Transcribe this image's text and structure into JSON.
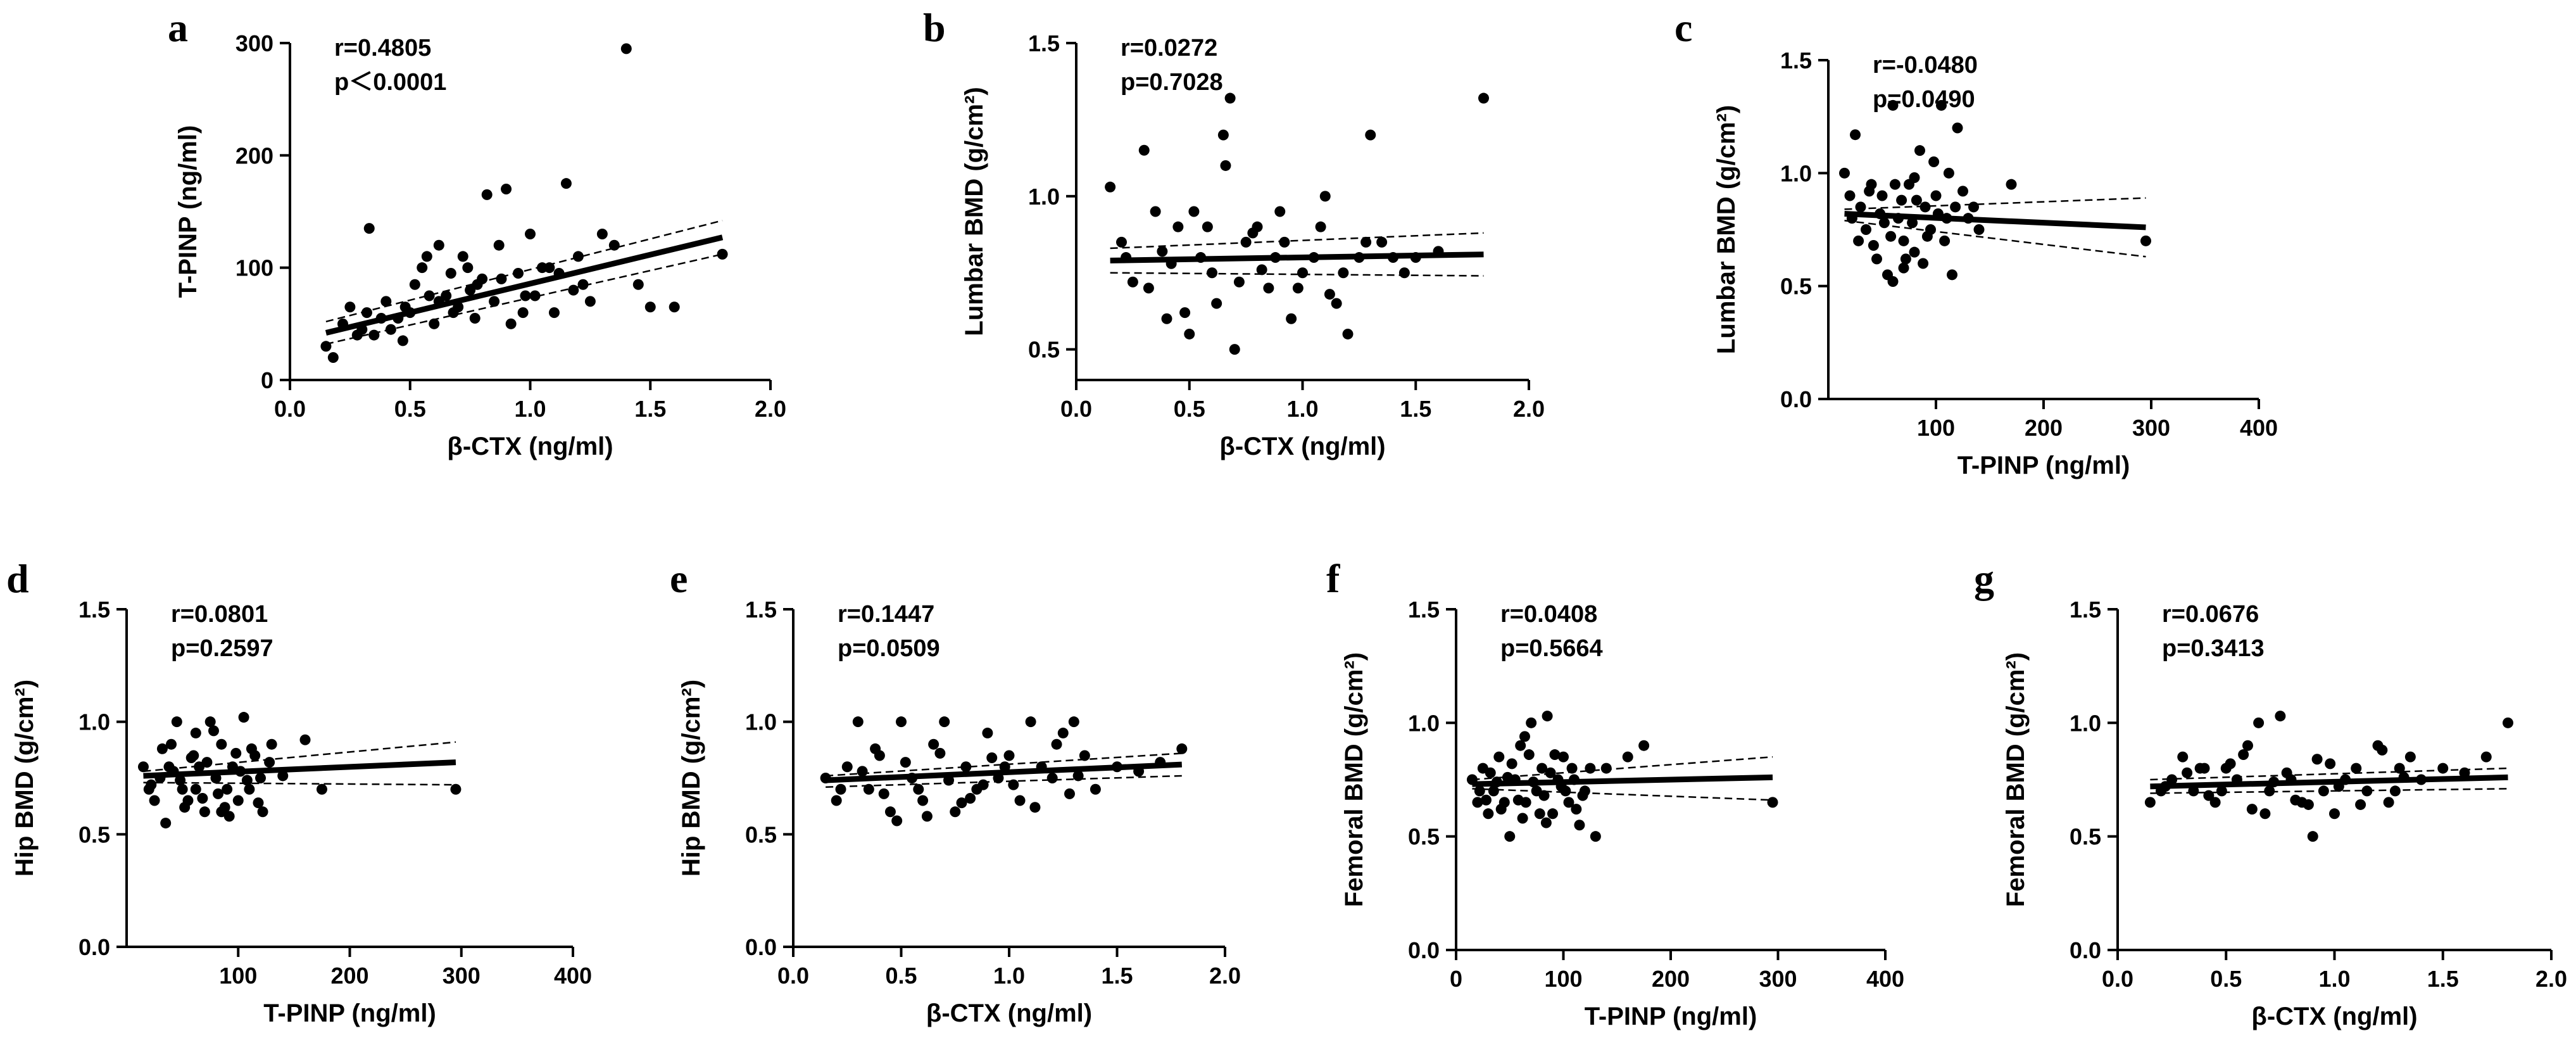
{
  "chart_data": [
    {
      "type": "scatter",
      "panel_label": "a",
      "xlabel": "β-CTX (ng/ml)",
      "ylabel": "T-PINP (ng/ml)",
      "xlim": [
        0,
        2.0
      ],
      "ylim": [
        0,
        300
      ],
      "xticks": [
        0,
        0.5,
        1.0,
        1.5,
        2.0
      ],
      "xtick_labels": [
        "0.0",
        "0.5",
        "1.0",
        "1.5",
        "2.0"
      ],
      "yticks": [
        0,
        100,
        200,
        300
      ],
      "ytick_labels": [
        "0",
        "100",
        "200",
        "300"
      ],
      "stats": {
        "r": "r=0.4805",
        "p": "p＜0.0001"
      },
      "fit": {
        "x": [
          0.15,
          1.8
        ],
        "y": [
          42,
          127
        ]
      },
      "ci_upper": {
        "x": [
          0.15,
          1.8
        ],
        "y": [
          52,
          142
        ]
      },
      "ci_lower": {
        "x": [
          0.15,
          1.8
        ],
        "y": [
          32,
          112
        ]
      },
      "points": {
        "x": [
          0.15,
          0.18,
          0.22,
          0.25,
          0.3,
          0.33,
          0.35,
          0.4,
          0.45,
          0.5,
          0.52,
          0.55,
          0.6,
          0.62,
          0.65,
          0.7,
          0.72,
          0.75,
          0.8,
          0.82,
          0.85,
          0.9,
          0.95,
          1.0,
          1.05,
          1.1,
          1.15,
          1.2,
          1.25,
          1.3,
          1.35,
          1.4,
          1.45,
          1.5,
          1.6,
          1.8,
          0.28,
          0.38,
          0.48,
          0.58,
          0.68,
          0.78,
          0.88,
          0.98,
          1.08,
          1.18,
          0.42,
          0.57,
          0.67,
          0.77,
          0.87,
          0.97,
          1.12,
          1.22,
          0.32,
          0.47,
          0.62,
          0.74,
          0.92,
          1.02
        ],
        "y": [
          30,
          20,
          50,
          65,
          45,
          135,
          40,
          70,
          55,
          60,
          85,
          100,
          50,
          120,
          75,
          65,
          110,
          80,
          90,
          165,
          70,
          170,
          95,
          130,
          100,
          60,
          175,
          110,
          70,
          130,
          120,
          295,
          85,
          65,
          65,
          112,
          40,
          55,
          65,
          75,
          60,
          85,
          90,
          75,
          100,
          80,
          45,
          110,
          95,
          55,
          120,
          60,
          95,
          85,
          60,
          35,
          70,
          100,
          50,
          75
        ]
      }
    },
    {
      "type": "scatter",
      "panel_label": "b",
      "xlabel": "β-CTX (ng/ml)",
      "ylabel": "Lumbar BMD (g/cm²)",
      "xlim": [
        0,
        2.0
      ],
      "ylim": [
        0.4,
        1.5
      ],
      "xticks": [
        0,
        0.5,
        1.0,
        1.5,
        2.0
      ],
      "xtick_labels": [
        "0.0",
        "0.5",
        "1.0",
        "1.5",
        "2.0"
      ],
      "yticks": [
        0.5,
        1.0,
        1.5
      ],
      "ytick_labels": [
        "0.5",
        "1.0",
        "1.5"
      ],
      "stats": {
        "r": "r=0.0272",
        "p": "p=0.7028"
      },
      "fit": {
        "x": [
          0.15,
          1.8
        ],
        "y": [
          0.79,
          0.81
        ]
      },
      "ci_upper": {
        "x": [
          0.15,
          1.8
        ],
        "y": [
          0.83,
          0.88
        ]
      },
      "ci_lower": {
        "x": [
          0.15,
          1.8
        ],
        "y": [
          0.75,
          0.74
        ]
      },
      "points": {
        "x": [
          0.15,
          0.2,
          0.25,
          0.3,
          0.35,
          0.4,
          0.45,
          0.5,
          0.55,
          0.6,
          0.65,
          0.7,
          0.75,
          0.8,
          0.85,
          0.9,
          0.95,
          1.0,
          1.05,
          1.1,
          1.15,
          1.2,
          1.25,
          1.3,
          1.35,
          1.4,
          1.45,
          1.5,
          1.6,
          1.8,
          0.22,
          0.32,
          0.42,
          0.52,
          0.62,
          0.68,
          0.72,
          0.78,
          0.88,
          0.98,
          1.08,
          1.18,
          1.28,
          0.38,
          0.48,
          0.58,
          0.66,
          0.82,
          0.92,
          1.12
        ],
        "y": [
          1.03,
          0.85,
          0.72,
          1.15,
          0.95,
          0.6,
          0.9,
          0.55,
          0.8,
          0.75,
          1.2,
          0.5,
          0.85,
          0.9,
          0.7,
          0.95,
          0.6,
          0.75,
          0.8,
          1.0,
          0.65,
          0.55,
          0.8,
          1.2,
          0.85,
          0.8,
          0.75,
          0.8,
          0.82,
          1.32,
          0.8,
          0.7,
          0.78,
          0.95,
          0.65,
          1.32,
          0.72,
          0.88,
          0.8,
          0.7,
          0.9,
          0.75,
          0.85,
          0.82,
          0.62,
          0.9,
          1.1,
          0.76,
          0.85,
          0.68
        ]
      }
    },
    {
      "type": "scatter",
      "panel_label": "c",
      "xlabel": "T-PINP (ng/ml)",
      "ylabel": "Lumbar BMD (g/cm²)",
      "xlim": [
        0,
        400
      ],
      "ylim": [
        0,
        1.5
      ],
      "xticks": [
        100,
        200,
        300,
        400
      ],
      "xtick_labels": [
        "100",
        "200",
        "300",
        "400"
      ],
      "yticks": [
        0,
        0.5,
        1.0,
        1.5
      ],
      "ytick_labels": [
        "0.0",
        "0.5",
        "1.0",
        "1.5"
      ],
      "stats": {
        "r": "r=-0.0480",
        "p": "p=0.0490"
      },
      "fit": {
        "x": [
          15,
          295
        ],
        "y": [
          0.82,
          0.76
        ]
      },
      "ci_upper": {
        "x": [
          15,
          295
        ],
        "y": [
          0.84,
          0.89
        ]
      },
      "ci_lower": {
        "x": [
          15,
          295
        ],
        "y": [
          0.79,
          0.63
        ]
      },
      "points": {
        "x": [
          15,
          20,
          25,
          30,
          35,
          40,
          45,
          50,
          55,
          60,
          65,
          70,
          75,
          80,
          85,
          90,
          95,
          100,
          105,
          110,
          115,
          120,
          130,
          140,
          170,
          295,
          22,
          28,
          38,
          48,
          58,
          68,
          78,
          88,
          98,
          108,
          118,
          125,
          42,
          52,
          62,
          72,
          82,
          92,
          102,
          112,
          135,
          60,
          70,
          80
        ],
        "y": [
          1.0,
          0.9,
          1.17,
          0.85,
          0.75,
          0.95,
          0.62,
          0.9,
          0.55,
          1.3,
          0.8,
          0.7,
          0.95,
          0.65,
          1.1,
          0.85,
          0.75,
          0.9,
          1.3,
          0.8,
          0.55,
          1.2,
          0.8,
          0.75,
          0.95,
          0.7,
          0.8,
          0.7,
          0.92,
          0.82,
          0.72,
          0.88,
          0.78,
          0.6,
          1.05,
          0.7,
          0.85,
          0.92,
          0.68,
          0.78,
          0.95,
          0.62,
          0.88,
          0.72,
          0.82,
          1.0,
          0.85,
          0.52,
          0.58,
          0.98
        ]
      }
    },
    {
      "type": "scatter",
      "panel_label": "d",
      "xlabel": "T-PINP (ng/ml)",
      "ylabel": "Hip BMD (g/cm²)",
      "xlim": [
        0,
        400
      ],
      "ylim": [
        0,
        1.5
      ],
      "xticks": [
        100,
        200,
        300,
        400
      ],
      "xtick_labels": [
        "100",
        "200",
        "300",
        "400"
      ],
      "yticks": [
        0,
        0.5,
        1.0,
        1.5
      ],
      "ytick_labels": [
        "0.0",
        "0.5",
        "1.0",
        "1.5"
      ],
      "stats": {
        "r": "r=0.0801",
        "p": "p=0.2597"
      },
      "fit": {
        "x": [
          15,
          295
        ],
        "y": [
          0.76,
          0.82
        ]
      },
      "ci_upper": {
        "x": [
          15,
          295
        ],
        "y": [
          0.78,
          0.91
        ]
      },
      "ci_lower": {
        "x": [
          15,
          295
        ],
        "y": [
          0.73,
          0.72
        ]
      },
      "points": {
        "x": [
          15,
          20,
          25,
          30,
          35,
          40,
          45,
          50,
          55,
          60,
          65,
          70,
          75,
          80,
          85,
          90,
          95,
          100,
          105,
          110,
          115,
          120,
          130,
          160,
          175,
          295,
          22,
          32,
          42,
          52,
          62,
          72,
          82,
          92,
          102,
          112,
          122,
          48,
          58,
          68,
          78,
          88,
          98,
          108,
          118,
          38,
          128,
          140,
          62,
          85
        ],
        "y": [
          0.8,
          0.7,
          0.65,
          0.75,
          0.55,
          0.9,
          1.0,
          0.7,
          0.65,
          0.85,
          0.8,
          0.6,
          1.0,
          0.75,
          0.9,
          0.7,
          0.8,
          0.65,
          1.02,
          0.7,
          0.85,
          0.75,
          0.9,
          0.92,
          0.7,
          0.7,
          0.72,
          0.88,
          0.78,
          0.62,
          0.95,
          0.82,
          0.68,
          0.58,
          0.78,
          0.88,
          0.6,
          0.74,
          0.84,
          0.66,
          0.96,
          0.62,
          0.86,
          0.74,
          0.64,
          0.8,
          0.82,
          0.76,
          0.7,
          0.6
        ]
      }
    },
    {
      "type": "scatter",
      "panel_label": "e",
      "xlabel": "β-CTX (ng/ml)",
      "ylabel": "Hip BMD (g/cm²)",
      "xlim": [
        0,
        2.0
      ],
      "ylim": [
        0,
        1.5
      ],
      "xticks": [
        0,
        0.5,
        1.0,
        1.5,
        2.0
      ],
      "xtick_labels": [
        "0.0",
        "0.5",
        "1.0",
        "1.5",
        "2.0"
      ],
      "yticks": [
        0,
        0.5,
        1.0,
        1.5
      ],
      "ytick_labels": [
        "0.0",
        "0.5",
        "1.0",
        "1.5"
      ],
      "stats": {
        "r": "r=0.1447",
        "p": "p=0.0509"
      },
      "fit": {
        "x": [
          0.15,
          1.8
        ],
        "y": [
          0.74,
          0.81
        ]
      },
      "ci_upper": {
        "x": [
          0.15,
          1.8
        ],
        "y": [
          0.76,
          0.86
        ]
      },
      "ci_lower": {
        "x": [
          0.15,
          1.8
        ],
        "y": [
          0.71,
          0.76
        ]
      },
      "points": {
        "x": [
          0.15,
          0.2,
          0.25,
          0.3,
          0.35,
          0.4,
          0.45,
          0.5,
          0.55,
          0.6,
          0.65,
          0.7,
          0.75,
          0.8,
          0.85,
          0.9,
          0.95,
          1.0,
          1.05,
          1.1,
          1.15,
          1.2,
          1.25,
          1.3,
          1.35,
          1.4,
          1.5,
          1.6,
          1.7,
          1.8,
          0.22,
          0.32,
          0.42,
          0.52,
          0.62,
          0.72,
          0.82,
          0.92,
          1.02,
          1.12,
          1.22,
          1.32,
          0.38,
          0.48,
          0.58,
          0.68,
          0.78,
          0.88,
          0.98,
          1.28
        ],
        "y": [
          0.75,
          0.65,
          0.8,
          1.0,
          0.7,
          0.85,
          0.6,
          1.0,
          0.75,
          0.65,
          0.9,
          1.0,
          0.6,
          0.8,
          0.7,
          0.95,
          0.75,
          0.85,
          0.65,
          1.0,
          0.8,
          0.75,
          0.95,
          1.0,
          0.85,
          0.7,
          0.8,
          0.78,
          0.82,
          0.88,
          0.7,
          0.78,
          0.68,
          0.82,
          0.58,
          0.74,
          0.66,
          0.84,
          0.72,
          0.62,
          0.9,
          0.76,
          0.88,
          0.56,
          0.7,
          0.86,
          0.64,
          0.72,
          0.8,
          0.68
        ]
      }
    },
    {
      "type": "scatter",
      "panel_label": "f",
      "xlabel": "T-PINP (ng/ml)",
      "ylabel": "Femoral BMD (g/cm²)",
      "xlim": [
        0,
        400
      ],
      "ylim": [
        0,
        1.5
      ],
      "xticks": [
        0,
        100,
        200,
        300,
        400
      ],
      "xtick_labels": [
        "0",
        "100",
        "200",
        "300",
        "400"
      ],
      "yticks": [
        0,
        0.5,
        1.0,
        1.5
      ],
      "ytick_labels": [
        "0.0",
        "0.5",
        "1.0",
        "1.5"
      ],
      "stats": {
        "r": "r=0.0408",
        "p": "p=0.5664"
      },
      "fit": {
        "x": [
          15,
          295
        ],
        "y": [
          0.73,
          0.76
        ]
      },
      "ci_upper": {
        "x": [
          15,
          295
        ],
        "y": [
          0.75,
          0.85
        ]
      },
      "ci_lower": {
        "x": [
          15,
          295
        ],
        "y": [
          0.71,
          0.66
        ]
      },
      "points": {
        "x": [
          15,
          20,
          25,
          30,
          35,
          40,
          45,
          50,
          55,
          60,
          65,
          70,
          75,
          80,
          85,
          90,
          95,
          100,
          105,
          110,
          115,
          120,
          130,
          160,
          175,
          295,
          22,
          32,
          42,
          52,
          62,
          72,
          82,
          92,
          102,
          112,
          125,
          48,
          58,
          68,
          78,
          88,
          98,
          108,
          118,
          38,
          28,
          140,
          64,
          84
        ],
        "y": [
          0.75,
          0.65,
          0.8,
          0.6,
          0.7,
          0.85,
          0.65,
          0.5,
          0.75,
          0.9,
          0.65,
          1.0,
          0.7,
          0.8,
          1.03,
          0.6,
          0.75,
          0.85,
          0.65,
          0.75,
          0.55,
          0.7,
          0.5,
          0.85,
          0.9,
          0.65,
          0.7,
          0.78,
          0.62,
          0.82,
          0.58,
          0.74,
          0.68,
          0.86,
          0.7,
          0.62,
          0.8,
          0.76,
          0.66,
          0.86,
          0.6,
          0.78,
          0.72,
          0.8,
          0.68,
          0.74,
          0.66,
          0.8,
          0.94,
          0.56
        ]
      }
    },
    {
      "type": "scatter",
      "panel_label": "g",
      "xlabel": "β-CTX (ng/ml)",
      "ylabel": "Femoral BMD (g/cm²)",
      "xlim": [
        0,
        2.0
      ],
      "ylim": [
        0,
        1.5
      ],
      "xticks": [
        0,
        0.5,
        1.0,
        1.5,
        2.0
      ],
      "xtick_labels": [
        "0.0",
        "0.5",
        "1.0",
        "1.5",
        "2.0"
      ],
      "yticks": [
        0,
        0.5,
        1.0,
        1.5
      ],
      "ytick_labels": [
        "0.0",
        "0.5",
        "1.0",
        "1.5"
      ],
      "stats": {
        "r": "r=0.0676",
        "p": "p=0.3413"
      },
      "fit": {
        "x": [
          0.15,
          1.8
        ],
        "y": [
          0.72,
          0.76
        ]
      },
      "ci_upper": {
        "x": [
          0.15,
          1.8
        ],
        "y": [
          0.75,
          0.8
        ]
      },
      "ci_lower": {
        "x": [
          0.15,
          1.8
        ],
        "y": [
          0.69,
          0.71
        ]
      },
      "points": {
        "x": [
          0.15,
          0.2,
          0.25,
          0.3,
          0.35,
          0.4,
          0.45,
          0.5,
          0.55,
          0.6,
          0.65,
          0.7,
          0.75,
          0.8,
          0.85,
          0.9,
          0.95,
          1.0,
          1.05,
          1.1,
          1.15,
          1.2,
          1.25,
          1.3,
          1.35,
          1.4,
          1.5,
          1.6,
          1.7,
          1.8,
          0.22,
          0.32,
          0.42,
          0.52,
          0.62,
          0.72,
          0.82,
          0.92,
          1.02,
          1.12,
          1.22,
          1.32,
          0.38,
          0.48,
          0.58,
          0.68,
          0.78,
          0.88,
          0.98,
          1.28
        ],
        "y": [
          0.65,
          0.7,
          0.75,
          0.85,
          0.7,
          0.8,
          0.65,
          0.8,
          0.75,
          0.9,
          1.0,
          0.7,
          1.03,
          0.75,
          0.65,
          0.5,
          0.7,
          0.6,
          0.75,
          0.8,
          0.7,
          0.9,
          0.65,
          0.8,
          0.85,
          0.75,
          0.8,
          0.78,
          0.85,
          1.0,
          0.72,
          0.78,
          0.68,
          0.82,
          0.62,
          0.74,
          0.66,
          0.84,
          0.72,
          0.64,
          0.88,
          0.76,
          0.8,
          0.7,
          0.86,
          0.6,
          0.78,
          0.64,
          0.82,
          0.7
        ]
      }
    }
  ]
}
